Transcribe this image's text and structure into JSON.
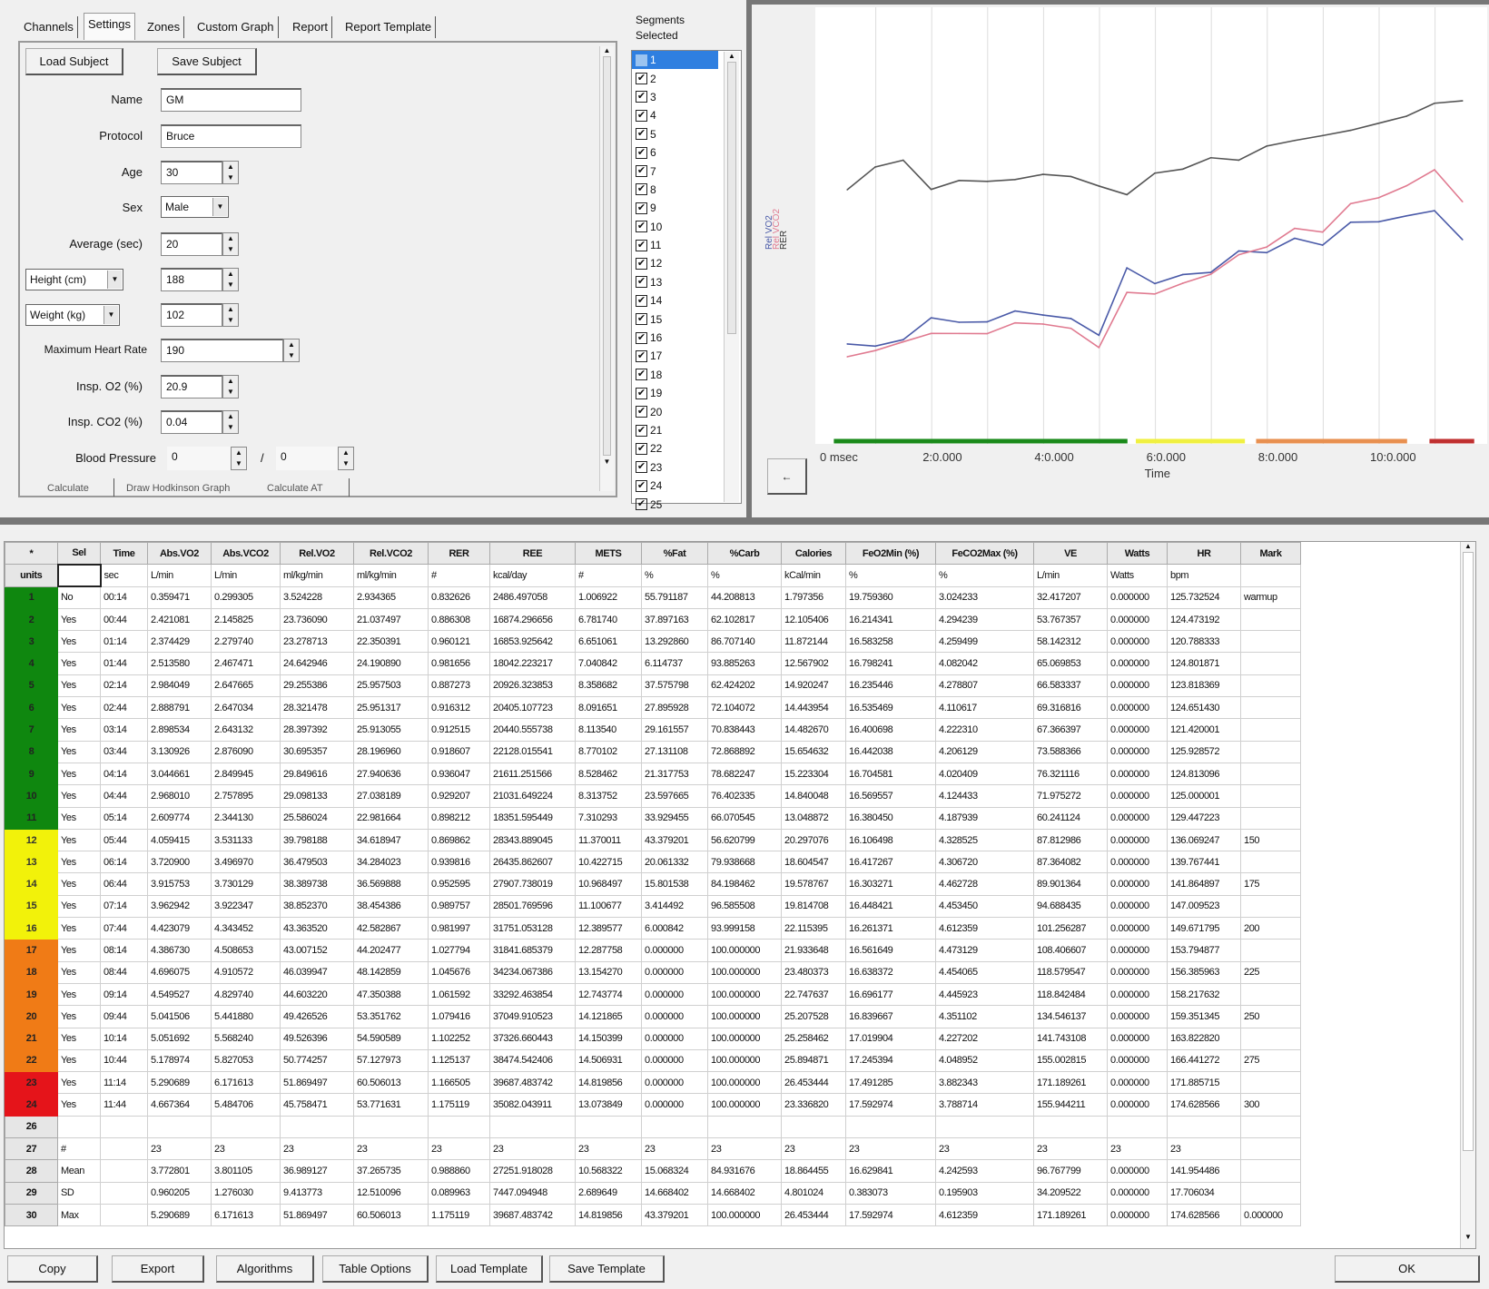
{
  "tabs": [
    {
      "label": "Channels"
    },
    {
      "label": "Settings",
      "selected": true
    },
    {
      "label": "Zones"
    },
    {
      "label": "Custom Graph"
    },
    {
      "label": "Report"
    },
    {
      "label": "Report Template"
    }
  ],
  "settings": {
    "load_subject": "Load Subject",
    "save_subject": "Save Subject",
    "name_label": "Name",
    "name_value": "GM",
    "protocol_label": "Protocol",
    "protocol_value": "Bruce",
    "age_label": "Age",
    "age_value": "30",
    "sex_label": "Sex",
    "sex_value": "Male",
    "average_label": "Average (sec)",
    "average_value": "20",
    "height_unit": "Height (cm)",
    "height_value": "188",
    "weight_unit": "Weight (kg)",
    "weight_value": "102",
    "maxhr_label": "Maximum Heart Rate",
    "maxhr_value": "190",
    "inspo2_label": "Insp. O2 (%)",
    "inspo2_value": "20.9",
    "inspco2_label": "Insp. CO2 (%)",
    "inspco2_value": "0.04",
    "bp_label": "Blood Pressure",
    "bp_sys": "0",
    "bp_sep": "/",
    "bp_dia": "0",
    "bottom_buttons": [
      "Calculate",
      "Draw Hodkinson Graph",
      "Calculate AT"
    ]
  },
  "segments": {
    "title": "Segments Selected",
    "items": [
      "1",
      "2",
      "3",
      "4",
      "5",
      "6",
      "7",
      "8",
      "9",
      "10",
      "11",
      "12",
      "13",
      "14",
      "15",
      "16",
      "17",
      "18",
      "19",
      "20",
      "21",
      "22",
      "23",
      "24",
      "25"
    ],
    "highlighted": "1"
  },
  "chart_data": {
    "type": "line",
    "xlabel": "Time",
    "ylabel_parts": [
      "Rel VO2",
      "Rel VCO2",
      "RER"
    ],
    "x_tick_labels": [
      "0 msec",
      "2:0.000",
      "4:0.000",
      "6:0.000",
      "8:0.000",
      "10:0.000"
    ],
    "xlim_min": [
      0,
      12.6
    ],
    "grid": "vertical every minute",
    "x": [
      "00:44",
      "01:14",
      "01:44",
      "02:14",
      "02:44",
      "03:14",
      "03:44",
      "04:14",
      "04:44",
      "05:14",
      "05:44",
      "06:14",
      "06:44",
      "07:14",
      "07:44",
      "08:14",
      "08:44",
      "09:14",
      "09:44",
      "10:14",
      "10:44",
      "11:14",
      "11:44"
    ],
    "series": [
      {
        "name": "Rel VO2",
        "color": "#4a5aa8",
        "axis": "left",
        "ylim": [
          2.65,
          94.8
        ],
        "values": [
          23.736,
          23.279,
          24.643,
          29.255,
          28.321,
          28.397,
          30.695,
          29.85,
          29.098,
          25.586,
          39.798,
          36.48,
          38.39,
          38.852,
          43.364,
          43.007,
          46.04,
          44.603,
          49.427,
          49.526,
          50.774,
          51.869,
          45.758
        ]
      },
      {
        "name": "Rel VCO2",
        "color": "#e07a90",
        "axis": "left",
        "ylim": [
          2.65,
          94.8
        ],
        "values": [
          21.037,
          22.35,
          24.191,
          25.958,
          25.951,
          25.913,
          28.197,
          27.941,
          27.038,
          22.982,
          34.619,
          34.284,
          36.57,
          38.454,
          42.583,
          44.202,
          48.143,
          47.35,
          53.352,
          54.591,
          57.128,
          60.506,
          53.772
        ]
      },
      {
        "name": "RER",
        "color": "#555555",
        "axis": "right",
        "ylim": [
          0.06,
          1.479
        ],
        "values": [
          0.886,
          0.96,
          0.982,
          0.887,
          0.916,
          0.913,
          0.919,
          0.936,
          0.929,
          0.898,
          0.87,
          0.94,
          0.953,
          0.99,
          0.982,
          1.028,
          1.046,
          1.062,
          1.079,
          1.102,
          1.125,
          1.167,
          1.175
        ]
      }
    ],
    "zones": [
      {
        "color": "#1a8a1a",
        "from": 0.25,
        "to": 5.5
      },
      {
        "color": "#f0f040",
        "from": 5.65,
        "to": 7.6
      },
      {
        "color": "#e89050",
        "from": 7.8,
        "to": 10.5
      },
      {
        "color": "#c03030",
        "from": 10.9,
        "to": 11.7
      }
    ]
  },
  "chart_button": "←",
  "table": {
    "columns": [
      "*",
      "Sel",
      "Time",
      "Abs.VO2",
      "Abs.VCO2",
      "Rel.VO2",
      "Rel.VCO2",
      "RER",
      "REE",
      "METS",
      "%Fat",
      "%Carb",
      "Calories",
      "FeO2Min (%)",
      "FeCO2Max (%)",
      "VE",
      "Watts",
      "HR",
      "Mark"
    ],
    "units": [
      "units",
      "",
      "sec",
      "L/min",
      "L/min",
      "ml/kg/min",
      "ml/kg/min",
      "#",
      "kcal/day",
      "#",
      "%",
      "%",
      "kCal/min",
      "%",
      "%",
      "L/min",
      "Watts",
      "bpm",
      ""
    ],
    "zone_colors": {
      "green": "#0f870f",
      "yellow": "#f2f20a",
      "orange": "#f07b16",
      "red": "#e5141a"
    },
    "rows": [
      {
        "zone": "green",
        "cells": [
          "1",
          "No",
          "00:14",
          "0.359471",
          "0.299305",
          "3.524228",
          "2.934365",
          "0.832626",
          "2486.497058",
          "1.006922",
          "55.791187",
          "44.208813",
          "1.797356",
          "19.759360",
          "3.024233",
          "32.417207",
          "0.000000",
          "125.732524",
          "warmup"
        ]
      },
      {
        "zone": "green",
        "cells": [
          "2",
          "Yes",
          "00:44",
          "2.421081",
          "2.145825",
          "23.736090",
          "21.037497",
          "0.886308",
          "16874.296656",
          "6.781740",
          "37.897163",
          "62.102817",
          "12.105406",
          "16.214341",
          "4.294239",
          "53.767357",
          "0.000000",
          "124.473192",
          ""
        ]
      },
      {
        "zone": "green",
        "cells": [
          "3",
          "Yes",
          "01:14",
          "2.374429",
          "2.279740",
          "23.278713",
          "22.350391",
          "0.960121",
          "16853.925642",
          "6.651061",
          "13.292860",
          "86.707140",
          "11.872144",
          "16.583258",
          "4.259499",
          "58.142312",
          "0.000000",
          "120.788333",
          ""
        ]
      },
      {
        "zone": "green",
        "cells": [
          "4",
          "Yes",
          "01:44",
          "2.513580",
          "2.467471",
          "24.642946",
          "24.190890",
          "0.981656",
          "18042.223217",
          "7.040842",
          "6.114737",
          "93.885263",
          "12.567902",
          "16.798241",
          "4.082042",
          "65.069853",
          "0.000000",
          "124.801871",
          ""
        ]
      },
      {
        "zone": "green",
        "cells": [
          "5",
          "Yes",
          "02:14",
          "2.984049",
          "2.647665",
          "29.255386",
          "25.957503",
          "0.887273",
          "20926.323853",
          "8.358682",
          "37.575798",
          "62.424202",
          "14.920247",
          "16.235446",
          "4.278807",
          "66.583337",
          "0.000000",
          "123.818369",
          ""
        ]
      },
      {
        "zone": "green",
        "cells": [
          "6",
          "Yes",
          "02:44",
          "2.888791",
          "2.647034",
          "28.321478",
          "25.951317",
          "0.916312",
          "20405.107723",
          "8.091651",
          "27.895928",
          "72.104072",
          "14.443954",
          "16.535469",
          "4.110617",
          "69.316816",
          "0.000000",
          "124.651430",
          ""
        ]
      },
      {
        "zone": "green",
        "cells": [
          "7",
          "Yes",
          "03:14",
          "2.898534",
          "2.643132",
          "28.397392",
          "25.913055",
          "0.912515",
          "20440.555738",
          "8.113540",
          "29.161557",
          "70.838443",
          "14.482670",
          "16.400698",
          "4.222310",
          "67.366397",
          "0.000000",
          "121.420001",
          ""
        ]
      },
      {
        "zone": "green",
        "cells": [
          "8",
          "Yes",
          "03:44",
          "3.130926",
          "2.876090",
          "30.695357",
          "28.196960",
          "0.918607",
          "22128.015541",
          "8.770102",
          "27.131108",
          "72.868892",
          "15.654632",
          "16.442038",
          "4.206129",
          "73.588366",
          "0.000000",
          "125.928572",
          ""
        ]
      },
      {
        "zone": "green",
        "cells": [
          "9",
          "Yes",
          "04:14",
          "3.044661",
          "2.849945",
          "29.849616",
          "27.940636",
          "0.936047",
          "21611.251566",
          "8.528462",
          "21.317753",
          "78.682247",
          "15.223304",
          "16.704581",
          "4.020409",
          "76.321116",
          "0.000000",
          "124.813096",
          ""
        ]
      },
      {
        "zone": "green",
        "cells": [
          "10",
          "Yes",
          "04:44",
          "2.968010",
          "2.757895",
          "29.098133",
          "27.038189",
          "0.929207",
          "21031.649224",
          "8.313752",
          "23.597665",
          "76.402335",
          "14.840048",
          "16.569557",
          "4.124433",
          "71.975272",
          "0.000000",
          "125.000001",
          ""
        ]
      },
      {
        "zone": "green",
        "cells": [
          "11",
          "Yes",
          "05:14",
          "2.609774",
          "2.344130",
          "25.586024",
          "22.981664",
          "0.898212",
          "18351.595449",
          "7.310293",
          "33.929455",
          "66.070545",
          "13.048872",
          "16.380450",
          "4.187939",
          "60.241124",
          "0.000000",
          "129.447223",
          ""
        ]
      },
      {
        "zone": "yellow",
        "cells": [
          "12",
          "Yes",
          "05:44",
          "4.059415",
          "3.531133",
          "39.798188",
          "34.618947",
          "0.869862",
          "28343.889045",
          "11.370011",
          "43.379201",
          "56.620799",
          "20.297076",
          "16.106498",
          "4.328525",
          "87.812986",
          "0.000000",
          "136.069247",
          "150"
        ]
      },
      {
        "zone": "yellow",
        "cells": [
          "13",
          "Yes",
          "06:14",
          "3.720900",
          "3.496970",
          "36.479503",
          "34.284023",
          "0.939816",
          "26435.862607",
          "10.422715",
          "20.061332",
          "79.938668",
          "18.604547",
          "16.417267",
          "4.306720",
          "87.364082",
          "0.000000",
          "139.767441",
          ""
        ]
      },
      {
        "zone": "yellow",
        "cells": [
          "14",
          "Yes",
          "06:44",
          "3.915753",
          "3.730129",
          "38.389738",
          "36.569888",
          "0.952595",
          "27907.738019",
          "10.968497",
          "15.801538",
          "84.198462",
          "19.578767",
          "16.303271",
          "4.462728",
          "89.901364",
          "0.000000",
          "141.864897",
          "175"
        ]
      },
      {
        "zone": "yellow",
        "cells": [
          "15",
          "Yes",
          "07:14",
          "3.962942",
          "3.922347",
          "38.852370",
          "38.454386",
          "0.989757",
          "28501.769596",
          "11.100677",
          "3.414492",
          "96.585508",
          "19.814708",
          "16.448421",
          "4.453450",
          "94.688435",
          "0.000000",
          "147.009523",
          ""
        ]
      },
      {
        "zone": "yellow",
        "cells": [
          "16",
          "Yes",
          "07:44",
          "4.423079",
          "4.343452",
          "43.363520",
          "42.582867",
          "0.981997",
          "31751.053128",
          "12.389577",
          "6.000842",
          "93.999158",
          "22.115395",
          "16.261371",
          "4.612359",
          "101.256287",
          "0.000000",
          "149.671795",
          "200"
        ]
      },
      {
        "zone": "orange",
        "cells": [
          "17",
          "Yes",
          "08:14",
          "4.386730",
          "4.508653",
          "43.007152",
          "44.202477",
          "1.027794",
          "31841.685379",
          "12.287758",
          "0.000000",
          "100.000000",
          "21.933648",
          "16.561649",
          "4.473129",
          "108.406607",
          "0.000000",
          "153.794877",
          ""
        ]
      },
      {
        "zone": "orange",
        "cells": [
          "18",
          "Yes",
          "08:44",
          "4.696075",
          "4.910572",
          "46.039947",
          "48.142859",
          "1.045676",
          "34234.067386",
          "13.154270",
          "0.000000",
          "100.000000",
          "23.480373",
          "16.638372",
          "4.454065",
          "118.579547",
          "0.000000",
          "156.385963",
          "225"
        ]
      },
      {
        "zone": "orange",
        "cells": [
          "19",
          "Yes",
          "09:14",
          "4.549527",
          "4.829740",
          "44.603220",
          "47.350388",
          "1.061592",
          "33292.463854",
          "12.743774",
          "0.000000",
          "100.000000",
          "22.747637",
          "16.696177",
          "4.445923",
          "118.842484",
          "0.000000",
          "158.217632",
          ""
        ]
      },
      {
        "zone": "orange",
        "cells": [
          "20",
          "Yes",
          "09:44",
          "5.041506",
          "5.441880",
          "49.426526",
          "53.351762",
          "1.079416",
          "37049.910523",
          "14.121865",
          "0.000000",
          "100.000000",
          "25.207528",
          "16.839667",
          "4.351102",
          "134.546137",
          "0.000000",
          "159.351345",
          "250"
        ]
      },
      {
        "zone": "orange",
        "cells": [
          "21",
          "Yes",
          "10:14",
          "5.051692",
          "5.568240",
          "49.526396",
          "54.590589",
          "1.102252",
          "37326.660443",
          "14.150399",
          "0.000000",
          "100.000000",
          "25.258462",
          "17.019904",
          "4.227202",
          "141.743108",
          "0.000000",
          "163.822820",
          ""
        ]
      },
      {
        "zone": "orange",
        "cells": [
          "22",
          "Yes",
          "10:44",
          "5.178974",
          "5.827053",
          "50.774257",
          "57.127973",
          "1.125137",
          "38474.542406",
          "14.506931",
          "0.000000",
          "100.000000",
          "25.894871",
          "17.245394",
          "4.048952",
          "155.002815",
          "0.000000",
          "166.441272",
          "275"
        ]
      },
      {
        "zone": "red",
        "cells": [
          "23",
          "Yes",
          "11:14",
          "5.290689",
          "6.171613",
          "51.869497",
          "60.506013",
          "1.166505",
          "39687.483742",
          "14.819856",
          "0.000000",
          "100.000000",
          "26.453444",
          "17.491285",
          "3.882343",
          "171.189261",
          "0.000000",
          "171.885715",
          ""
        ]
      },
      {
        "zone": "red",
        "cells": [
          "24",
          "Yes",
          "11:44",
          "4.667364",
          "5.484706",
          "45.758471",
          "53.771631",
          "1.175119",
          "35082.043911",
          "13.073849",
          "0.000000",
          "100.000000",
          "23.336820",
          "17.592974",
          "3.788714",
          "155.944211",
          "0.000000",
          "174.628566",
          "300"
        ]
      },
      {
        "zone": "",
        "cells": [
          "26",
          "",
          "",
          "",
          "",
          "",
          "",
          "",
          "",
          "",
          "",
          "",
          "",
          "",
          "",
          "",
          "",
          "",
          ""
        ]
      },
      {
        "zone": "",
        "cells": [
          "27",
          "#",
          "",
          "23",
          "23",
          "23",
          "23",
          "23",
          "23",
          "23",
          "23",
          "23",
          "23",
          "23",
          "23",
          "23",
          "23",
          "23",
          ""
        ]
      },
      {
        "zone": "",
        "cells": [
          "28",
          "Mean",
          "",
          "3.772801",
          "3.801105",
          "36.989127",
          "37.265735",
          "0.988860",
          "27251.918028",
          "10.568322",
          "15.068324",
          "84.931676",
          "18.864455",
          "16.629841",
          "4.242593",
          "96.767799",
          "0.000000",
          "141.954486",
          ""
        ]
      },
      {
        "zone": "",
        "cells": [
          "29",
          "SD",
          "",
          "0.960205",
          "1.276030",
          "9.413773",
          "12.510096",
          "0.089963",
          "7447.094948",
          "2.689649",
          "14.668402",
          "14.668402",
          "4.801024",
          "0.383073",
          "0.195903",
          "34.209522",
          "0.000000",
          "17.706034",
          ""
        ]
      },
      {
        "zone": "",
        "cells": [
          "30",
          "Max",
          "",
          "5.290689",
          "6.171613",
          "51.869497",
          "60.506013",
          "1.175119",
          "39687.483742",
          "14.819856",
          "43.379201",
          "100.000000",
          "26.453444",
          "17.592974",
          "4.612359",
          "171.189261",
          "0.000000",
          "174.628566",
          "0.000000"
        ]
      }
    ]
  },
  "footer": {
    "buttons": [
      "Copy",
      "Export",
      "Algorithms",
      "Table Options",
      "Load Template",
      "Save Template"
    ],
    "ok": "OK"
  }
}
